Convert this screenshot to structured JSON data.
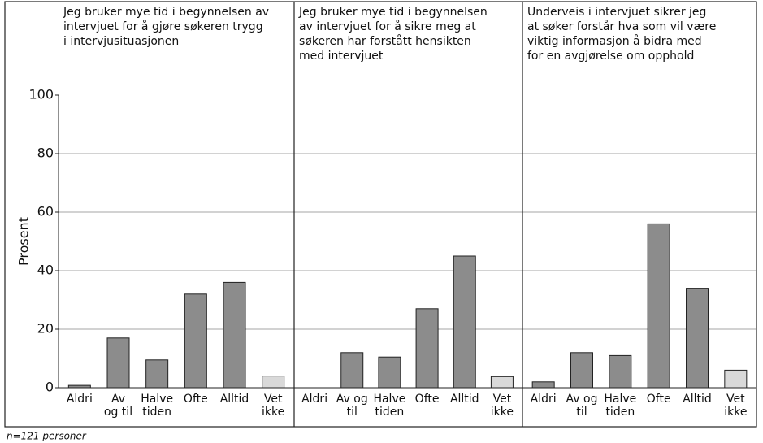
{
  "chart_data": {
    "type": "bar",
    "ylabel": "Prosent",
    "ylim": [
      0,
      100
    ],
    "yticks": [
      0,
      20,
      40,
      60,
      80,
      100
    ],
    "grid": true,
    "colors": [
      "#8c8c8c",
      "#8c8c8c",
      "#8c8c8c",
      "#8c8c8c",
      "#8c8c8c",
      "#d9d9d9"
    ],
    "note": "n=121 personer",
    "panels": [
      {
        "title": [
          "Jeg bruker mye tid i begynnelsen av",
          "intervjuet for å gjøre søkeren trygg",
          "i intervjusituasjonen"
        ],
        "categories": [
          [
            "Aldri"
          ],
          [
            "Av",
            "og til"
          ],
          [
            "Halve",
            "tiden"
          ],
          [
            "Ofte"
          ],
          [
            "Alltid"
          ],
          [
            "Vet",
            "ikke"
          ]
        ],
        "values": [
          0.8,
          17,
          9.5,
          32,
          36,
          4
        ]
      },
      {
        "title": [
          "Jeg bruker mye tid i begynnelsen",
          "av intervjuet for å sikre meg at",
          "søkeren har forstått hensikten",
          "med intervjuet"
        ],
        "categories": [
          [
            "Aldri"
          ],
          [
            "Av og",
            "til"
          ],
          [
            "Halve",
            "tiden"
          ],
          [
            "Ofte"
          ],
          [
            "Alltid"
          ],
          [
            "Vet",
            "ikke"
          ]
        ],
        "values": [
          0,
          12,
          10.5,
          27,
          45,
          3.8
        ]
      },
      {
        "title": [
          "Underveis i intervjuet sikrer jeg",
          "at søker forstår hva som vil være",
          "viktig informasjon å bidra med",
          "for en avgjørelse om opphold"
        ],
        "categories": [
          [
            "Aldri"
          ],
          [
            "Av og",
            "til"
          ],
          [
            "Halve",
            "tiden"
          ],
          [
            "Ofte"
          ],
          [
            "Alltid"
          ],
          [
            "Vet",
            "ikke"
          ]
        ],
        "values": [
          2,
          12,
          11,
          56,
          34,
          6
        ]
      }
    ]
  }
}
